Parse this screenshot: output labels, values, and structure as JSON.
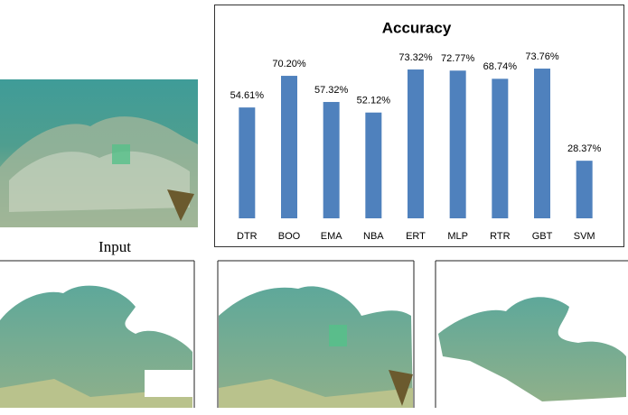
{
  "caption": "Input",
  "chart_data": {
    "type": "bar",
    "title": "Accuracy",
    "categories": [
      "DTR",
      "BOO",
      "EMA",
      "NBA",
      "ERT",
      "MLP",
      "RTR",
      "GBT",
      "SVM"
    ],
    "values": [
      54.61,
      70.2,
      57.32,
      52.12,
      73.32,
      72.77,
      68.74,
      73.76,
      28.37
    ],
    "value_labels": [
      "54.61%",
      "70.20%",
      "57.32%",
      "52.12%",
      "73.32%",
      "72.77%",
      "68.74%",
      "73.76%",
      "28.37%"
    ],
    "color": "#4f81bd",
    "ylim": [
      0,
      80
    ]
  }
}
